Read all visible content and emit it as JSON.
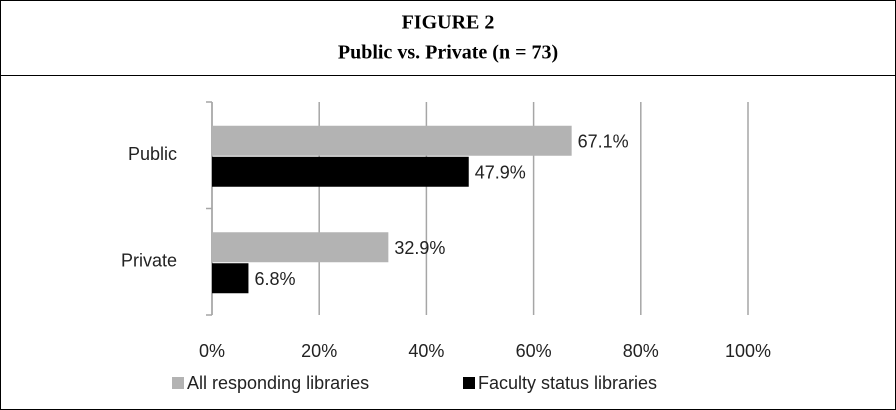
{
  "chart_data": {
    "type": "bar",
    "orientation": "horizontal",
    "title": "FIGURE 2",
    "subtitle": "Public vs. Private (n = 73)",
    "categories": [
      "Public",
      "Private"
    ],
    "series": [
      {
        "name": "All responding libraries",
        "color": "#b3b3b3",
        "values": [
          67.1,
          32.9
        ],
        "value_labels": [
          "67.1%",
          "32.9%"
        ]
      },
      {
        "name": "Faculty status libraries",
        "color": "#000000",
        "values": [
          47.9,
          6.8
        ],
        "value_labels": [
          "47.9%",
          "6.8%"
        ]
      }
    ],
    "xlim": [
      0,
      100
    ],
    "xticks": [
      {
        "value": 0,
        "label": "0%"
      },
      {
        "value": 20,
        "label": "20%"
      },
      {
        "value": 40,
        "label": "40%"
      },
      {
        "value": 60,
        "label": "60%"
      },
      {
        "value": 80,
        "label": "80%"
      },
      {
        "value": 100,
        "label": "100%"
      }
    ],
    "grid": true,
    "legend": "bottom"
  }
}
